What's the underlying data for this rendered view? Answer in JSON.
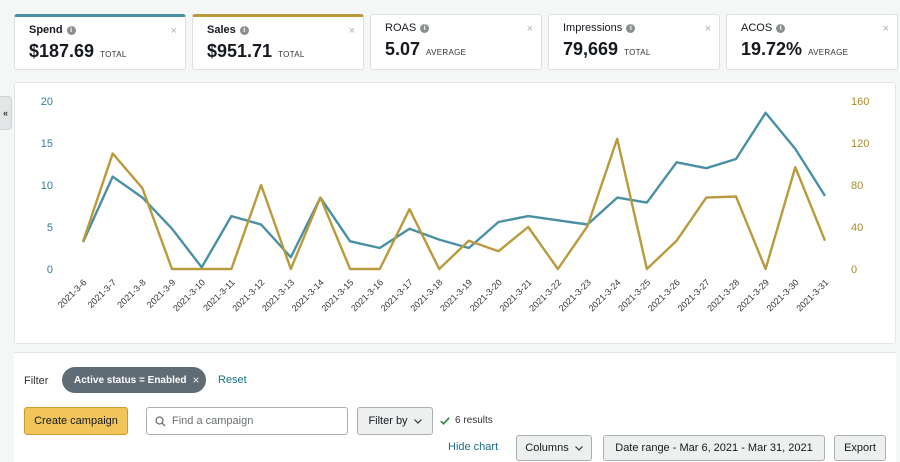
{
  "metrics": [
    {
      "title": "Spend",
      "value": "$187.69",
      "unit": "TOTAL"
    },
    {
      "title": "Sales",
      "value": "$951.71",
      "unit": "TOTAL"
    },
    {
      "title": "ROAS",
      "value": "5.07",
      "unit": "AVERAGE"
    },
    {
      "title": "Impressions",
      "value": "79,669",
      "unit": "TOTAL"
    },
    {
      "title": "ACOS",
      "value": "19.72%",
      "unit": "AVERAGE"
    }
  ],
  "collapse_glyph": "«",
  "close_glyph": "×",
  "info_glyph": "i",
  "colors": {
    "spend": "#4a90a4",
    "sales": "#b99a3c"
  },
  "chart_data": {
    "type": "line",
    "categories": [
      "2021-3-6",
      "2021-3-7",
      "2021-3-8",
      "2021-3-9",
      "2021-3-10",
      "2021-3-11",
      "2021-3-12",
      "2021-3-13",
      "2021-3-14",
      "2021-3-15",
      "2021-3-16",
      "2021-3-17",
      "2021-3-18",
      "2021-3-19",
      "2021-3-20",
      "2021-3-21",
      "2021-3-22",
      "2021-3-23",
      "2021-3-24",
      "2021-3-25",
      "2021-3-26",
      "2021-3-27",
      "2021-3-28",
      "2021-3-29",
      "2021-3-30",
      "2021-3-31"
    ],
    "series": [
      {
        "axis": "left",
        "color": "#4a90a4",
        "values": [
          3.2,
          11.0,
          8.5,
          4.8,
          0.2,
          6.3,
          5.3,
          1.4,
          8.5,
          3.3,
          2.5,
          4.8,
          3.5,
          2.5,
          5.6,
          6.3,
          5.8,
          5.3,
          8.5,
          7.9,
          12.7,
          12.0,
          13.1,
          18.6,
          14.3,
          8.7
        ]
      },
      {
        "axis": "right",
        "color": "#b99a3c",
        "values": [
          26,
          110,
          77,
          0,
          0,
          0,
          80,
          0,
          68,
          0,
          0,
          57,
          0,
          27,
          17,
          40,
          0,
          41,
          124,
          0,
          27,
          68,
          69,
          0,
          97,
          27
        ]
      }
    ],
    "y_left": {
      "ticks": [
        "20",
        "15",
        "10",
        "5",
        "0"
      ],
      "ylim": [
        0,
        20
      ]
    },
    "y_right": {
      "ticks": [
        "160",
        "120",
        "80",
        "40",
        "0"
      ],
      "ylim": [
        0,
        160
      ]
    }
  },
  "filter": {
    "label": "Filter",
    "chip_label": "Active status = Enabled",
    "reset": "Reset"
  },
  "toolbar": {
    "create_campaign": "Create campaign",
    "search_placeholder": "Find a campaign",
    "filter_by": "Filter by",
    "results": "6 results",
    "hide_chart": "Hide chart",
    "columns": "Columns",
    "date_range": "Date range - Mar 6, 2021 - Mar 31, 2021",
    "export": "Export"
  }
}
